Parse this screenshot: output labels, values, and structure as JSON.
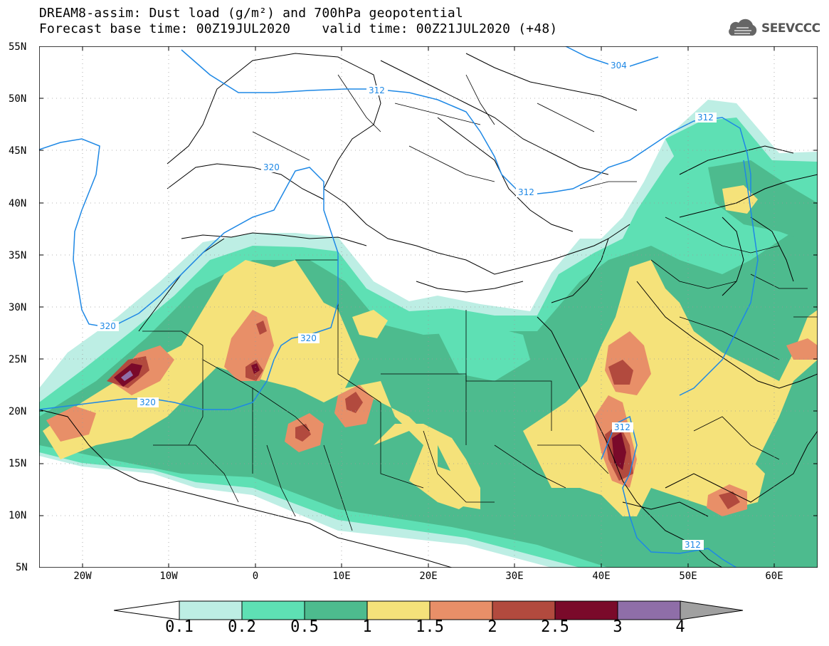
{
  "title": {
    "line1": "DREAM8-assim: Dust load (g/m²) and 700hPa geopotential",
    "line2": "Forecast base time: 00Z19JUL2020    valid time: 00Z21JUL2020 (+48)"
  },
  "logo": {
    "text": "SEEVCCC",
    "icon": "cloud-icon"
  },
  "map": {
    "lon_range": [
      -25,
      65
    ],
    "lat_range": [
      5,
      55
    ],
    "lat_ticks": [
      "55N",
      "50N",
      "45N",
      "40N",
      "35N",
      "30N",
      "25N",
      "20N",
      "15N",
      "10N",
      "5N"
    ],
    "lon_ticks": [
      "20W",
      "10W",
      "0",
      "10E",
      "20E",
      "30E",
      "40E",
      "50E",
      "60E"
    ],
    "grid": "dotted",
    "contours": [
      {
        "label": "304"
      },
      {
        "label": "312"
      },
      {
        "label": "312"
      },
      {
        "label": "312"
      },
      {
        "label": "312"
      },
      {
        "label": "312"
      },
      {
        "label": "320"
      },
      {
        "label": "320"
      },
      {
        "label": "320"
      },
      {
        "label": "320"
      }
    ],
    "contour_color": "#1e88e5"
  },
  "colorbar": {
    "labels": [
      "0.1",
      "0.2",
      "0.5",
      "1",
      "1.5",
      "2",
      "2.5",
      "3",
      "4"
    ],
    "colors": [
      "#ffffff",
      "#bdeee4",
      "#5ee0b4",
      "#4dbb8e",
      "#f5e27a",
      "#e88f68",
      "#b24a3e",
      "#7a0a2a",
      "#8f6ea8",
      "#a0a0a0"
    ]
  }
}
